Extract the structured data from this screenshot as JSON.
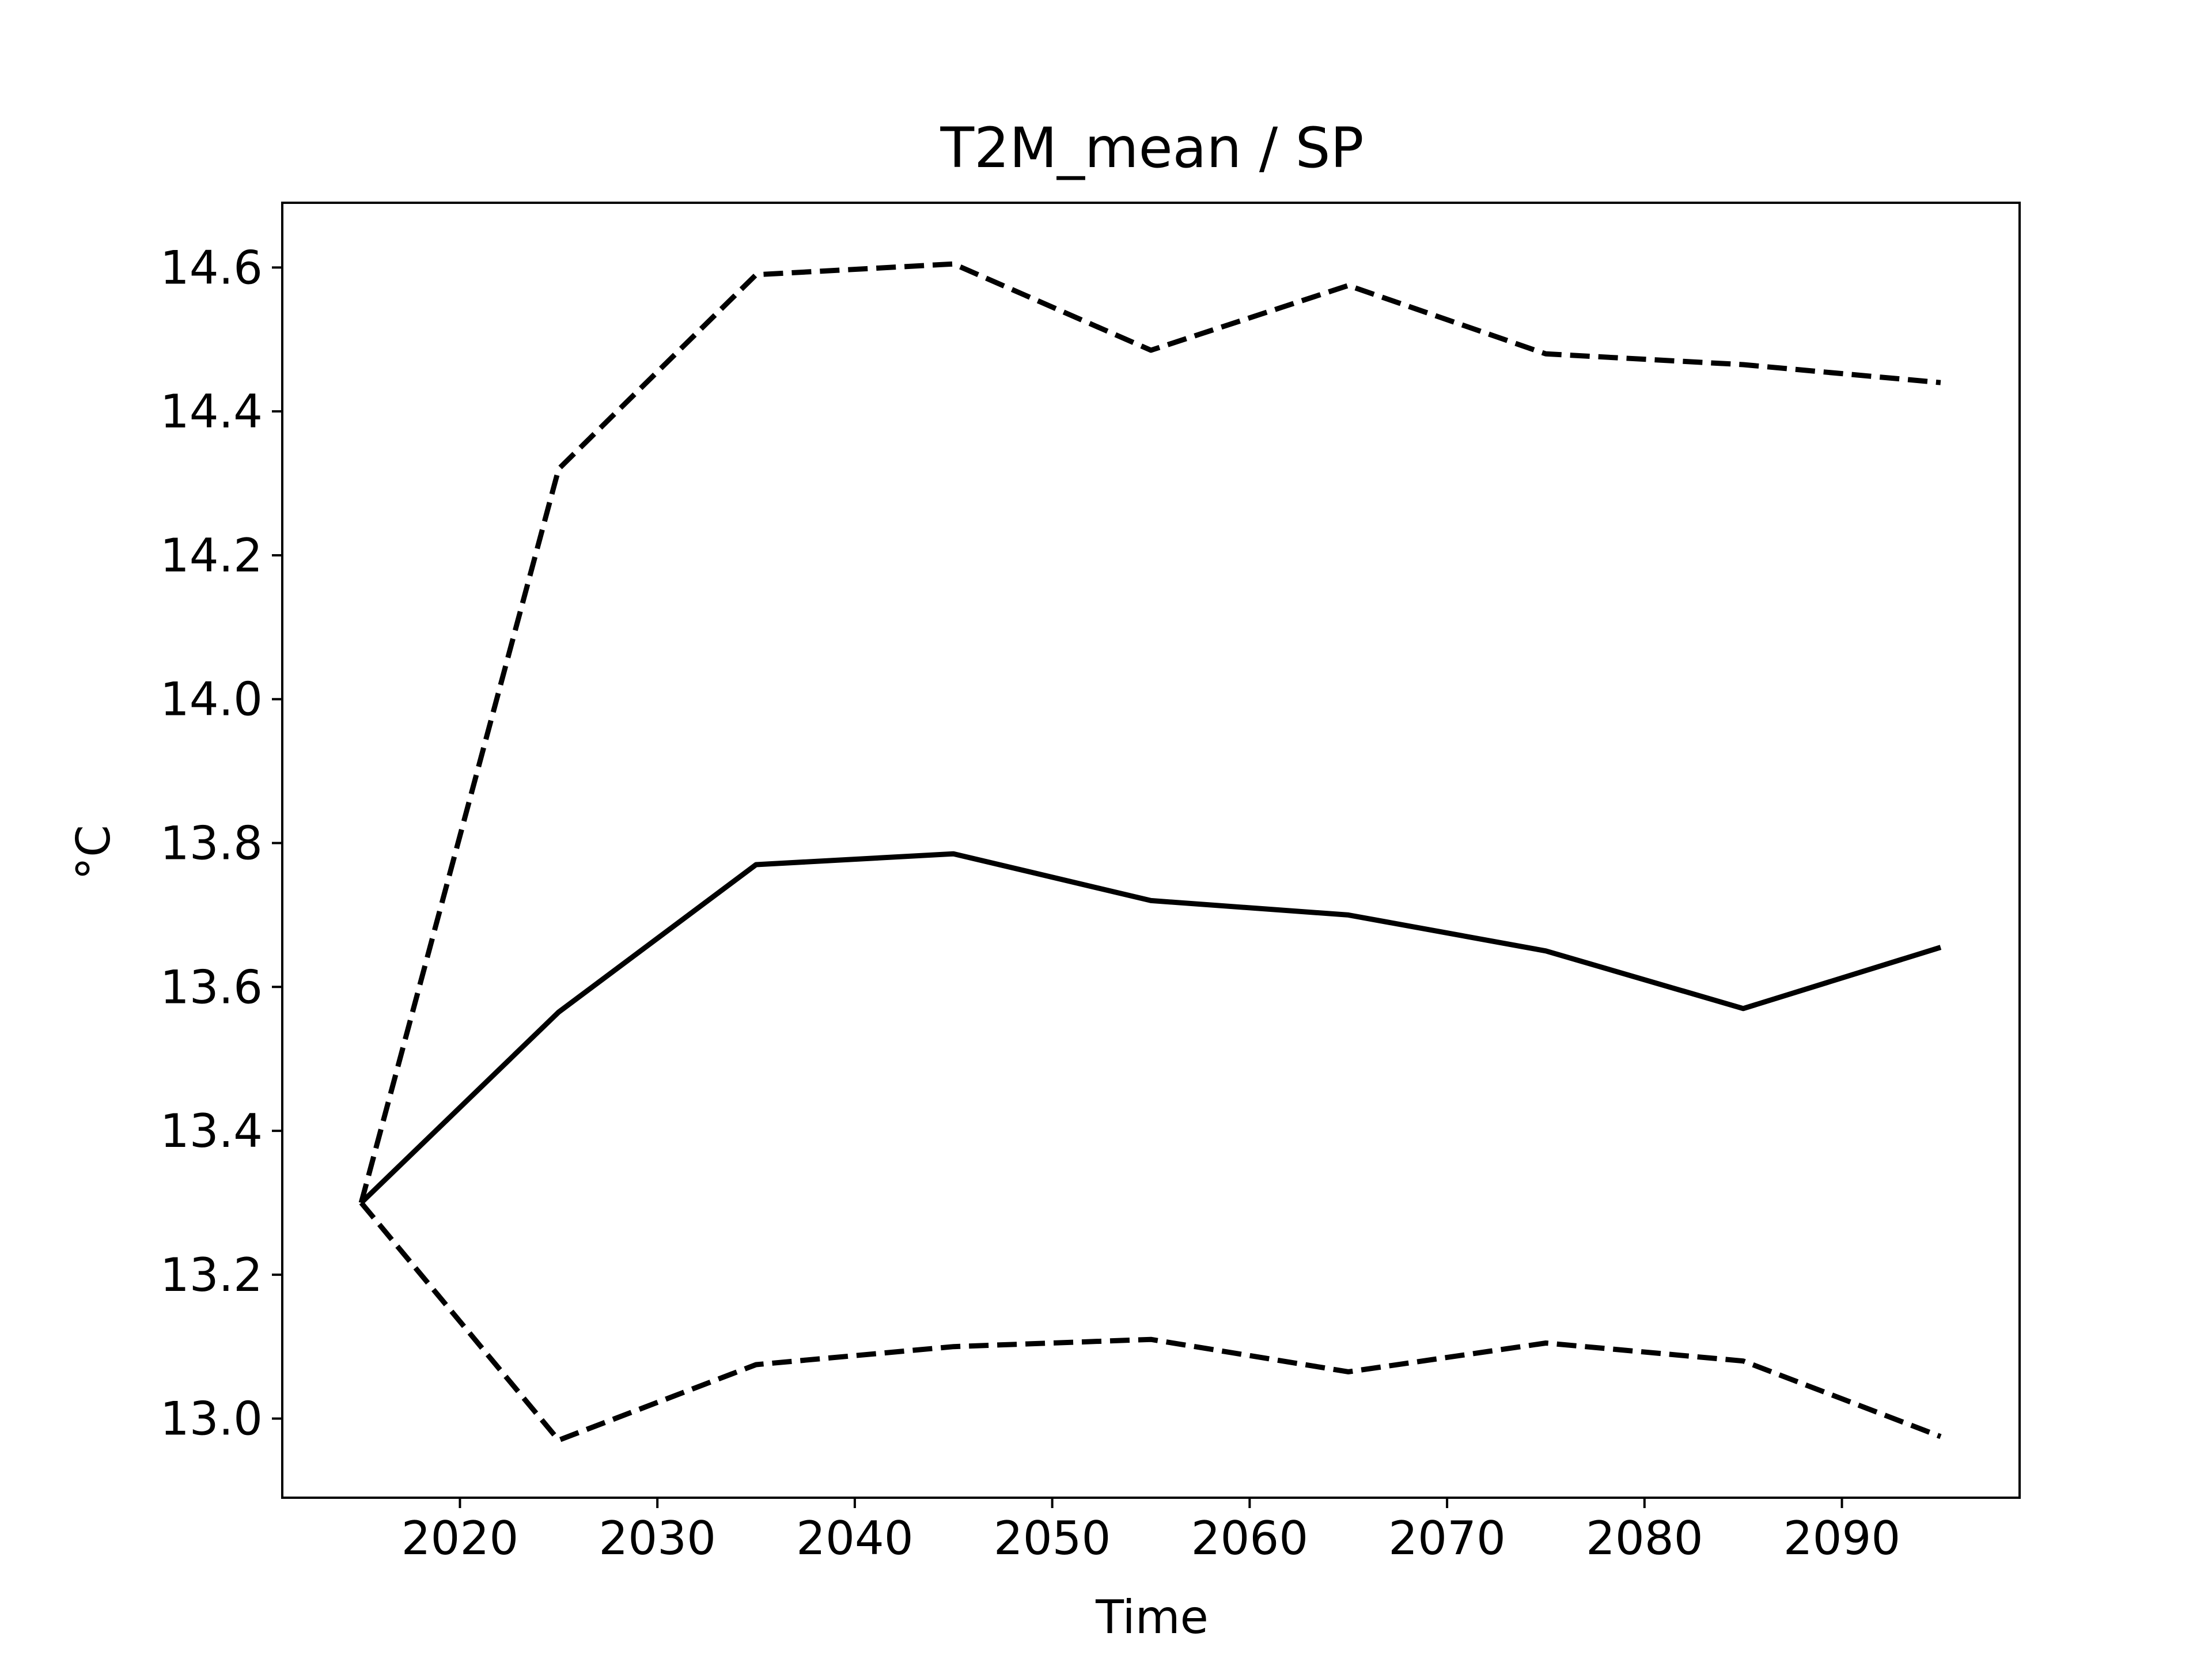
{
  "chart_data": {
    "type": "line",
    "title": "T2M_mean / SP",
    "xlabel": "Time",
    "ylabel": "°C",
    "xlim": [
      2011,
      2099
    ],
    "ylim": [
      12.89,
      14.69
    ],
    "grid": false,
    "x": [
      2015,
      2025,
      2035,
      2045,
      2055,
      2065,
      2075,
      2085,
      2095
    ],
    "x_ticks": [
      2020,
      2030,
      2040,
      2050,
      2060,
      2070,
      2080,
      2090
    ],
    "x_tick_labels": [
      "2020",
      "2030",
      "2040",
      "2050",
      "2060",
      "2070",
      "2080",
      "2090"
    ],
    "y_ticks": [
      13.0,
      13.2,
      13.4,
      13.6,
      13.8,
      14.0,
      14.2,
      14.4,
      14.6
    ],
    "y_tick_labels": [
      "13.0",
      "13.2",
      "13.4",
      "13.6",
      "13.8",
      "14.0",
      "14.2",
      "14.4",
      "14.6"
    ],
    "series": [
      {
        "style": "solid",
        "color": "#000000",
        "values": [
          13.3,
          13.565,
          13.77,
          13.785,
          13.72,
          13.7,
          13.65,
          13.57,
          13.655
        ]
      },
      {
        "style": "dashed",
        "color": "#000000",
        "values": [
          13.3,
          14.32,
          14.59,
          14.605,
          14.485,
          14.575,
          14.48,
          14.465,
          14.44
        ]
      },
      {
        "style": "dashed",
        "color": "#000000",
        "values": [
          13.3,
          12.97,
          13.075,
          13.1,
          13.11,
          13.065,
          13.105,
          13.08,
          12.975
        ]
      }
    ]
  }
}
